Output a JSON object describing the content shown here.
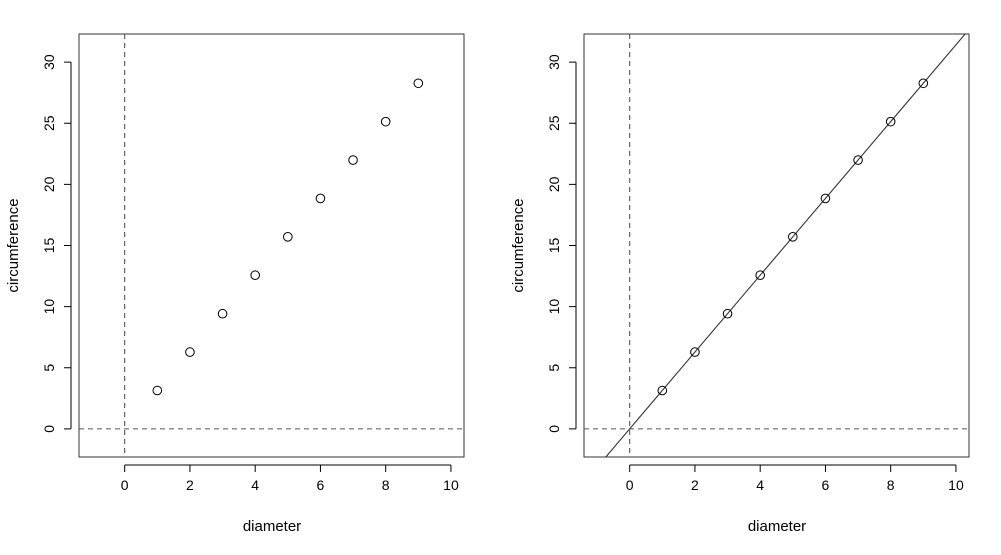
{
  "chart_data": [
    {
      "type": "scatter",
      "xlabel": "diameter",
      "ylabel": "circumference",
      "xlim": [
        -1.4,
        10.4
      ],
      "ylim": [
        -2.3,
        32.3
      ],
      "x_ticks": [
        "0",
        "2",
        "4",
        "6",
        "8",
        "10"
      ],
      "y_ticks": [
        "0",
        "5",
        "10",
        "15",
        "20",
        "25",
        "30"
      ],
      "reference_lines": {
        "x": 0,
        "y": 0,
        "style": "dashed"
      },
      "fit_line": null,
      "series": [
        {
          "x": [
            1,
            2,
            3,
            4,
            5,
            6,
            7,
            8,
            9
          ],
          "y": [
            3.14,
            6.28,
            9.42,
            12.57,
            15.71,
            18.85,
            21.99,
            25.13,
            28.27
          ]
        }
      ]
    },
    {
      "type": "scatter",
      "xlabel": "diameter",
      "ylabel": "circumference",
      "xlim": [
        -1.4,
        10.4
      ],
      "ylim": [
        -2.3,
        32.3
      ],
      "x_ticks": [
        "0",
        "2",
        "4",
        "6",
        "8",
        "10"
      ],
      "y_ticks": [
        "0",
        "5",
        "10",
        "15",
        "20",
        "25",
        "30"
      ],
      "reference_lines": {
        "x": 0,
        "y": 0,
        "style": "dashed"
      },
      "fit_line": {
        "intercept": 0,
        "slope": 3.1416
      },
      "series": [
        {
          "x": [
            1,
            2,
            3,
            4,
            5,
            6,
            7,
            8,
            9
          ],
          "y": [
            3.14,
            6.28,
            9.42,
            12.57,
            15.71,
            18.85,
            21.99,
            25.13,
            28.27
          ]
        }
      ]
    }
  ]
}
